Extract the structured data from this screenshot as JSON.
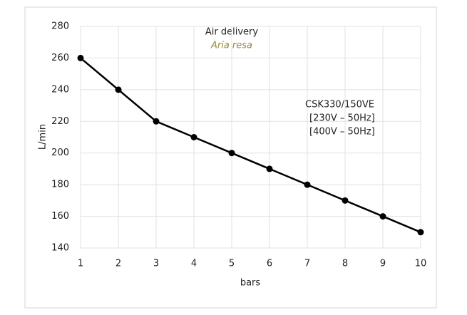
{
  "chart_data": {
    "type": "line",
    "title": "Air delivery",
    "subtitle": "Aria resa",
    "annotation": [
      "CSK330/150VE",
      "[230V – 50Hz]",
      "[400V – 50Hz]"
    ],
    "x_label": "bars",
    "y_label": "L/min",
    "x": [
      1,
      2,
      3,
      4,
      5,
      6,
      7,
      8,
      9,
      10
    ],
    "series": [
      {
        "color": "#000000",
        "values": [
          260,
          240,
          220,
          210,
          200,
          190,
          180,
          170,
          160,
          150
        ]
      }
    ],
    "xlim": [
      1,
      10
    ],
    "xticks": [
      1,
      2,
      3,
      4,
      5,
      6,
      7,
      8,
      9,
      10
    ],
    "ylim": [
      140,
      280
    ],
    "yticks": [
      140,
      160,
      180,
      200,
      220,
      240,
      260,
      280
    ],
    "grid": true
  }
}
